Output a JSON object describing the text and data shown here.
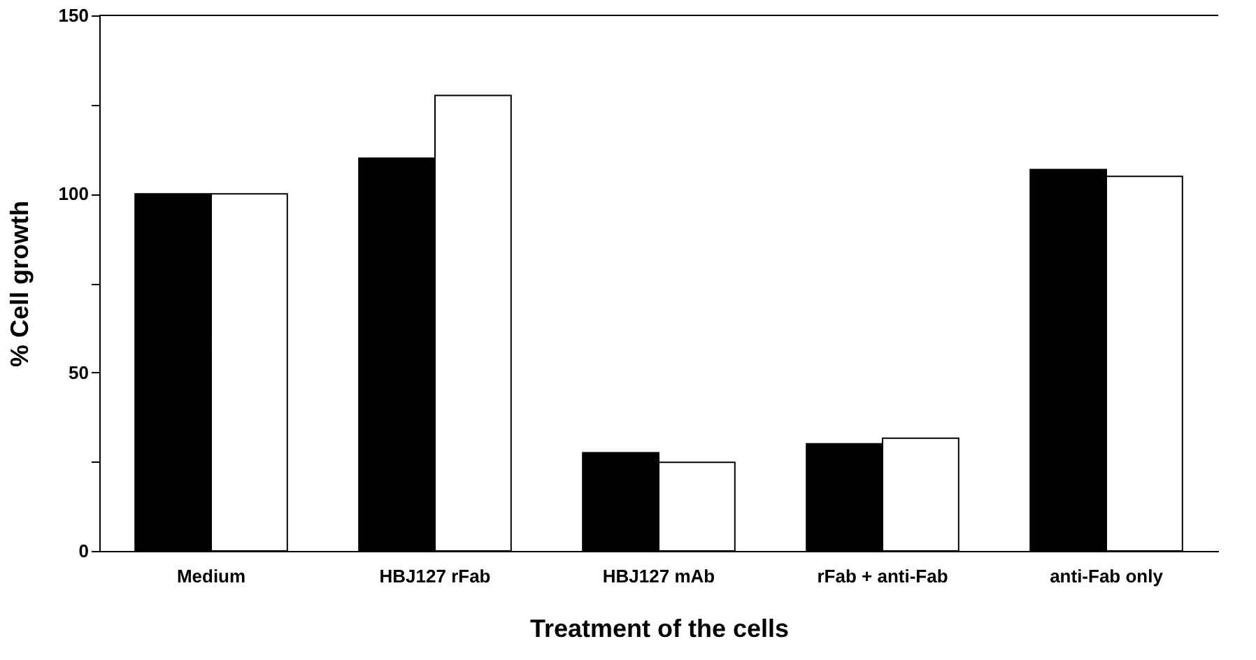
{
  "chart_data": {
    "type": "bar",
    "xlabel": "Treatment of the cells",
    "ylabel": "% Cell growth",
    "categories": [
      "Medium",
      "HBJ127 rFab",
      "HBJ127 mAb",
      "rFab + anti-Fab",
      "anti-Fab only"
    ],
    "series": [
      {
        "color": "#000000",
        "values": [
          100,
          110,
          27.5,
          30,
          106.8
        ]
      },
      {
        "color": "#ffffff",
        "values": [
          100,
          127.6,
          24.8,
          31.6,
          104.9
        ]
      }
    ],
    "ylim": [
      0,
      150
    ],
    "yticks": [
      0,
      {
        "value": 25,
        "label": null
      },
      50,
      {
        "value": 75,
        "label": null
      },
      100,
      {
        "value": 125,
        "label": null
      },
      150
    ],
    "grid": false
  }
}
